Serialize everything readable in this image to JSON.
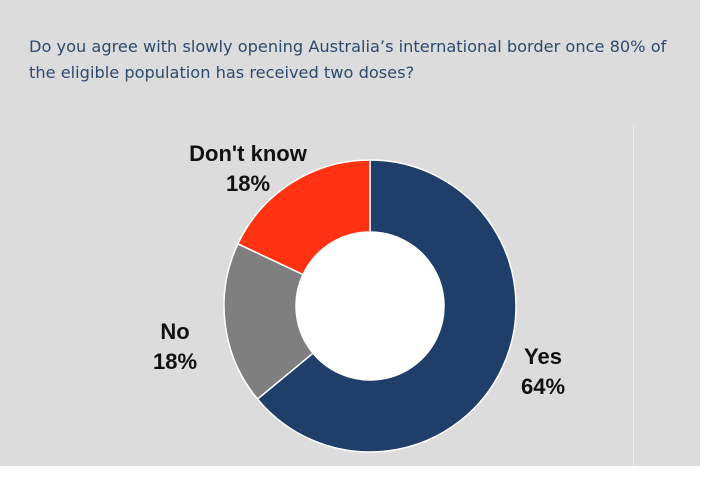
{
  "title": "Do you agree with slowly opening Australia’s international border once 80% of the eligible population has received two doses?",
  "chart_data": {
    "type": "pie",
    "style": "donut",
    "title": "Do you agree with slowly opening Australia’s international border once 80% of the eligible population has received two doses?",
    "slices": [
      {
        "label": "Yes",
        "value": 64,
        "value_label": "64%",
        "color": "#1f3f6a"
      },
      {
        "label": "Don't know",
        "value": 18,
        "value_label": "18%",
        "color": "#7f7f7f"
      },
      {
        "label": "No",
        "value": 18,
        "value_label": "18%",
        "color": "#ff3311"
      }
    ],
    "background": "#dcdcdc"
  }
}
